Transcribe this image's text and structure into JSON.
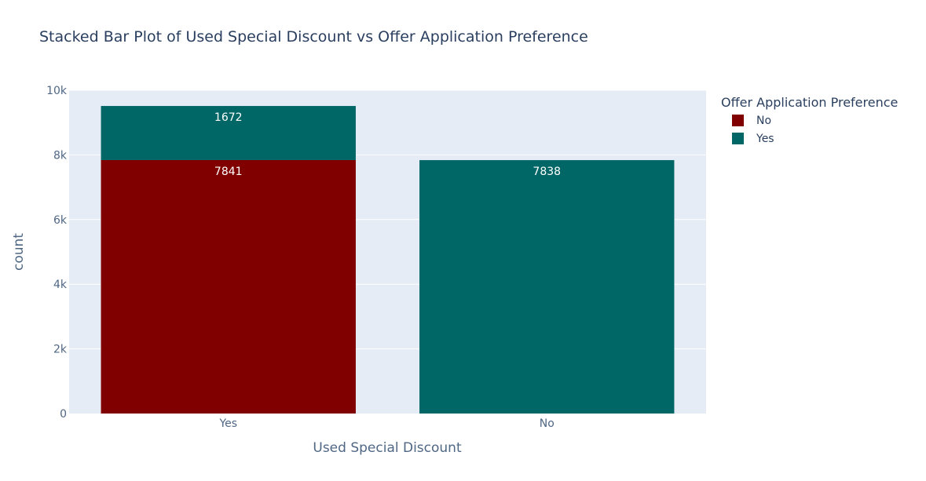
{
  "chart_data": {
    "type": "bar",
    "barmode": "stack",
    "title": "Stacked Bar Plot of Used Special Discount vs Offer Application Preference",
    "xlabel": "Used Special Discount",
    "ylabel": "count",
    "categories": [
      "Yes",
      "No"
    ],
    "ylim": [
      0,
      10000
    ],
    "yticks": [
      {
        "value": 0,
        "label": "0"
      },
      {
        "value": 2000,
        "label": "2k"
      },
      {
        "value": 4000,
        "label": "4k"
      },
      {
        "value": 6000,
        "label": "6k"
      },
      {
        "value": 8000,
        "label": "8k"
      },
      {
        "value": 10000,
        "label": "10k"
      }
    ],
    "grid": true,
    "legend": {
      "title": "Offer Application Preference",
      "position": "top-right"
    },
    "series": [
      {
        "name": "No",
        "color": "#800000",
        "values": [
          7841,
          null
        ],
        "labels": [
          "7841",
          ""
        ]
      },
      {
        "name": "Yes",
        "color": "#006666",
        "values": [
          1672,
          7838
        ],
        "labels": [
          "1672",
          "7838"
        ]
      }
    ],
    "plot_background": "#e5ecf6"
  }
}
